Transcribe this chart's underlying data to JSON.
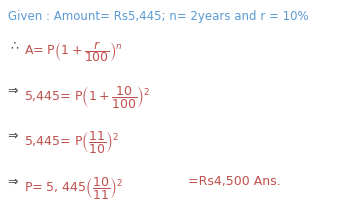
{
  "bg_color": "#ffffff",
  "blue_color": "#5b9bd5",
  "dark_color": "#404040",
  "orange_color": "#c0504d",
  "fig_width": 3.4,
  "fig_height": 2.17,
  "dpi": 100,
  "fs_given": 8.5,
  "fs_math": 9.0
}
